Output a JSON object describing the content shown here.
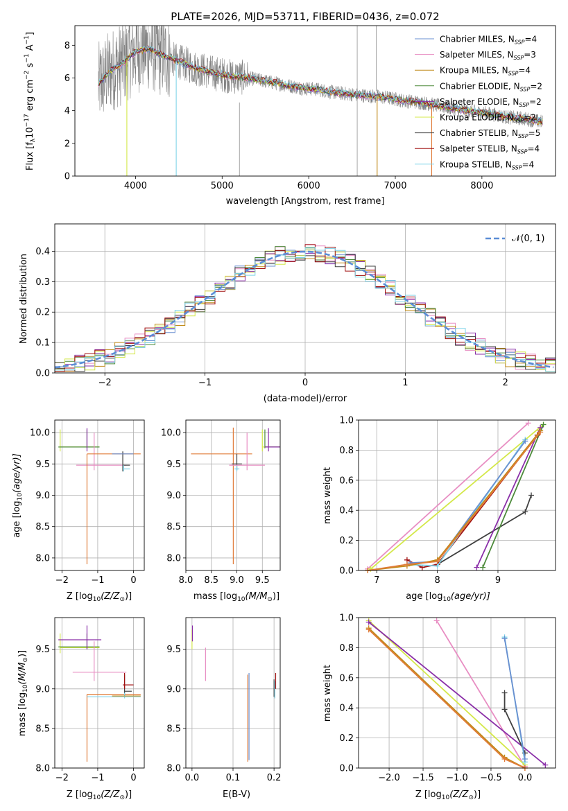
{
  "figure": {
    "title": "PLATE=2026, MJD=53711, FIBERID=0436, z=0.072"
  },
  "legend_models": [
    {
      "label_main": "Chabrier MILES, N",
      "label_sub": "SSP",
      "label_tail": "=4",
      "color": "#6a8fd0"
    },
    {
      "label_main": "Salpeter MILES, N",
      "label_sub": "SSP",
      "label_tail": "=3",
      "color": "#e88ec3"
    },
    {
      "label_main": "Kroupa MILES, N",
      "label_sub": "SSP",
      "label_tail": "=4",
      "color": "#c08a18"
    },
    {
      "label_main": "Chabrier ELODIE, N",
      "label_sub": "SSP",
      "label_tail": "=2",
      "color": "#4c8a3a"
    },
    {
      "label_main": "Salpeter ELODIE, N",
      "label_sub": "SSP",
      "label_tail": "=2",
      "color": "#8a2fa8"
    },
    {
      "label_main": "Kroupa ELODIE, N",
      "label_sub": "SSP",
      "label_tail": "=2",
      "color": "#d4e84a"
    },
    {
      "label_main": "Chabrier STELIB, N",
      "label_sub": "SSP",
      "label_tail": "=5",
      "color": "#404040"
    },
    {
      "label_main": "Salpeter STELIB, N",
      "label_sub": "SSP",
      "label_tail": "=4",
      "color": "#a01010"
    },
    {
      "label_main": "Kroupa STELIB, N",
      "label_sub": "SSP",
      "label_tail": "=4",
      "color": "#7ed3e8"
    }
  ],
  "chart_data": [
    {
      "id": "spectrum",
      "type": "line",
      "xlabel": "wavelength [Angstrom, rest frame]",
      "ylabel_main": "Flux [f",
      "ylabel_sub": "λ",
      "ylabel_10": "10",
      "ylabel_exp1": "−17",
      "ylabel_mid": " erg cm",
      "ylabel_exp2": "−2",
      "ylabel_s": " s",
      "ylabel_exp3": "−1",
      "ylabel_A": " A",
      "ylabel_exp4": "−1",
      "ylabel_end": "]",
      "xlim": [
        3300,
        8850
      ],
      "ylim": [
        0,
        9.2
      ],
      "xticks": [
        4000,
        5000,
        6000,
        7000,
        8000
      ],
      "yticks": [
        0,
        2,
        4,
        6,
        8
      ],
      "grid": false,
      "legend_position": "top-right",
      "data_trend": {
        "x": [
          3570,
          3700,
          3850,
          4000,
          4150,
          4300,
          4500,
          4700,
          4900,
          5100,
          5300,
          5500,
          5700,
          5900,
          6100,
          6300,
          6500,
          6700,
          6900,
          7100,
          7300,
          7500,
          7700,
          7900,
          8100,
          8300,
          8500,
          8700
        ],
        "y": [
          5.6,
          6.4,
          6.9,
          7.6,
          7.8,
          7.4,
          7.0,
          6.6,
          6.3,
          6.1,
          6.0,
          5.8,
          5.6,
          5.4,
          5.3,
          5.1,
          5.0,
          4.9,
          4.8,
          4.6,
          4.5,
          4.3,
          4.1,
          3.95,
          3.8,
          3.6,
          3.5,
          3.3
        ]
      }
    },
    {
      "id": "residuals",
      "type": "bar",
      "xlabel": "(data-model)/error",
      "ylabel": "Normed distribution",
      "xlim": [
        -2.5,
        2.5
      ],
      "ylim": [
        0,
        0.49
      ],
      "xticks": [
        -2,
        -1,
        0,
        1,
        2
      ],
      "xtick_labels": [
        "−2",
        "−1",
        "0",
        "1",
        "2"
      ],
      "yticks": [
        0.0,
        0.1,
        0.2,
        0.3,
        0.4
      ],
      "ytick_labels": [
        "0.0",
        "0.1",
        "0.2",
        "0.3",
        "0.4"
      ],
      "grid": true,
      "legend_label": "𝒩(0, 1)",
      "legend_position": "top-right",
      "normal_curve": {
        "mean": 0,
        "std": 1,
        "color": "#5b8dd6"
      },
      "bin_width": 0.1
    },
    {
      "id": "age_vs_Z",
      "type": "scatter",
      "xlabel": "Z [log",
      "xlabel_sub": "10",
      "xlabel_paren": "(Z/Z",
      "xlabel_sun": "⊙",
      "xlabel_end": ")]",
      "ylabel": "age  [log",
      "ylabel_sub": "10",
      "ylabel_end": "(age/yr)]",
      "xlim": [
        -2.2,
        0.3
      ],
      "ylim": [
        7.8,
        10.2
      ],
      "xticks": [
        -2,
        -1,
        0
      ],
      "xtick_labels": [
        "−2",
        "−1",
        "0"
      ],
      "yticks": [
        8.0,
        8.5,
        9.0,
        9.5,
        10.0
      ],
      "ytick_labels": [
        "8.0",
        "8.5",
        "9.0",
        "9.5",
        "10.0"
      ],
      "grid": true
    },
    {
      "id": "age_vs_mass",
      "type": "scatter",
      "xlabel": "mass [log",
      "xlabel_sub": "10",
      "xlabel_paren": "(M/M",
      "xlabel_sun": "⊙",
      "xlabel_end": ")]",
      "xlim": [
        8.0,
        9.85
      ],
      "ylim": [
        7.8,
        10.2
      ],
      "xticks": [
        8.0,
        8.5,
        9.0,
        9.5
      ],
      "xtick_labels": [
        "8.0",
        "8.5",
        "9.0",
        "9.5"
      ],
      "yticks": [
        8.0,
        8.5,
        9.0,
        9.5,
        10.0
      ],
      "ytick_labels": [
        "8.0",
        "8.5",
        "9.0",
        "9.5",
        "10.0"
      ],
      "grid": true
    },
    {
      "id": "mw_vs_age",
      "type": "line",
      "xlabel": "age  [log",
      "xlabel_sub": "10",
      "xlabel_end": "(age/yr)]",
      "ylabel": "mass weight",
      "xlim": [
        6.7,
        9.95
      ],
      "ylim": [
        0,
        1.0
      ],
      "xticks": [
        7,
        8,
        9
      ],
      "xtick_labels": [
        "7",
        "8",
        "9"
      ],
      "yticks": [
        0.0,
        0.2,
        0.4,
        0.6,
        0.8,
        1.0
      ],
      "ytick_labels": [
        "0.0",
        "0.2",
        "0.4",
        "0.6",
        "0.8",
        "1.0"
      ],
      "grid": true,
      "series": [
        {
          "color": "#e88ec3",
          "points": [
            [
              6.85,
              0.01
            ],
            [
              9.5,
              0.98
            ]
          ]
        },
        {
          "color": "#d4e84a",
          "points": [
            [
              6.9,
              0.01
            ],
            [
              9.75,
              0.97
            ]
          ]
        },
        {
          "color": "#404040",
          "points": [
            [
              8.0,
              0.04
            ],
            [
              9.45,
              0.39
            ],
            [
              9.55,
              0.5
            ]
          ]
        },
        {
          "color": "#4c8a3a",
          "points": [
            [
              8.75,
              0.02
            ],
            [
              9.75,
              0.97
            ]
          ]
        },
        {
          "color": "#8a2fa8",
          "points": [
            [
              8.65,
              0.02
            ],
            [
              9.7,
              0.95
            ]
          ]
        },
        {
          "color": "#a01010",
          "points": [
            [
              7.5,
              0.07
            ],
            [
              7.75,
              0.02
            ],
            [
              8.0,
              0.04
            ],
            [
              9.65,
              0.9
            ]
          ]
        },
        {
          "color": "#7ed3e8",
          "points": [
            [
              7.5,
              0.04
            ],
            [
              8.0,
              0.03
            ],
            [
              9.45,
              0.87
            ]
          ]
        },
        {
          "color": "#6a8fd0",
          "points": [
            [
              7.55,
              0.05
            ],
            [
              8.0,
              0.06
            ],
            [
              9.45,
              0.86
            ]
          ]
        },
        {
          "color": "#c08a18",
          "points": [
            [
              6.85,
              0.0
            ],
            [
              7.5,
              0.03
            ],
            [
              8.0,
              0.07
            ],
            [
              9.7,
              0.93
            ]
          ]
        },
        {
          "color": "#e07b39",
          "points": [
            [
              6.85,
              0.0
            ],
            [
              7.5,
              0.04
            ],
            [
              8.0,
              0.06
            ],
            [
              9.7,
              0.92
            ]
          ]
        }
      ]
    },
    {
      "id": "mass_vs_Z",
      "type": "scatter",
      "ylabel": "mass [log",
      "ylabel_sub": "10",
      "ylabel_paren": "(M/M",
      "ylabel_sun": "⊙",
      "ylabel_end": ")]",
      "xlabel": "Z [log",
      "xlabel_sub": "10",
      "xlabel_paren": "(Z/Z",
      "xlabel_sun": "⊙",
      "xlabel_end": ")]",
      "xlim": [
        -2.2,
        0.3
      ],
      "ylim": [
        8.0,
        9.9
      ],
      "xticks": [
        -2,
        -1,
        0
      ],
      "xtick_labels": [
        "−2",
        "−1",
        "0"
      ],
      "yticks": [
        8.0,
        8.5,
        9.0,
        9.5
      ],
      "ytick_labels": [
        "8.0",
        "8.5",
        "9.0",
        "9.5"
      ],
      "grid": true
    },
    {
      "id": "mass_vs_ebv",
      "type": "scatter",
      "xlabel": "E(B-V)",
      "xlim": [
        -0.015,
        0.215
      ],
      "ylim": [
        8.0,
        9.9
      ],
      "xticks": [
        0.0,
        0.1,
        0.2
      ],
      "xtick_labels": [
        "0.0",
        "0.1",
        "0.2"
      ],
      "yticks": [
        8.0,
        8.5,
        9.0,
        9.5
      ],
      "ytick_labels": [
        "8.0",
        "8.5",
        "9.0",
        "9.5"
      ],
      "grid": true
    },
    {
      "id": "mw_vs_Z",
      "type": "line",
      "xlabel": "Z [log",
      "xlabel_sub": "10",
      "xlabel_paren": "(Z/Z",
      "xlabel_sun": "⊙",
      "xlabel_end": ")]",
      "ylabel": "mass weight",
      "xlim": [
        -2.45,
        0.45
      ],
      "ylim": [
        0,
        1.0
      ],
      "xticks": [
        -2.0,
        -1.5,
        -1.0,
        -0.5,
        0.0
      ],
      "xtick_labels": [
        "−2.0",
        "−1.5",
        "−1.0",
        "−0.5",
        "0.0"
      ],
      "yticks": [
        0.0,
        0.2,
        0.4,
        0.6,
        0.8,
        1.0
      ],
      "ytick_labels": [
        "0.0",
        "0.2",
        "0.4",
        "0.6",
        "0.8",
        "1.0"
      ],
      "grid": true,
      "series": [
        {
          "color": "#e88ec3",
          "points": [
            [
              -1.3,
              0.98
            ],
            [
              0.0,
              0.01
            ]
          ]
        },
        {
          "color": "#d4e84a",
          "points": [
            [
              -2.3,
              0.98
            ],
            [
              0.0,
              0.02
            ]
          ]
        },
        {
          "color": "#8a2fa8",
          "points": [
            [
              -2.3,
              0.97
            ],
            [
              0.3,
              0.02
            ]
          ]
        },
        {
          "color": "#404040",
          "points": [
            [
              -0.3,
              0.5
            ],
            [
              -0.3,
              0.39
            ],
            [
              0.0,
              0.1
            ]
          ]
        },
        {
          "color": "#7ed3e8",
          "points": [
            [
              -0.3,
              0.87
            ],
            [
              0.0,
              0.04
            ]
          ]
        },
        {
          "color": "#6a8fd0",
          "points": [
            [
              -0.3,
              0.86
            ],
            [
              0.0,
              0.06
            ]
          ]
        },
        {
          "color": "#c08a18",
          "points": [
            [
              -2.3,
              0.93
            ],
            [
              -0.3,
              0.07
            ],
            [
              0.0,
              0.0
            ]
          ]
        },
        {
          "color": "#e07b39",
          "points": [
            [
              -2.3,
              0.92
            ],
            [
              -0.3,
              0.06
            ],
            [
              0.0,
              0.0
            ]
          ]
        }
      ]
    }
  ]
}
